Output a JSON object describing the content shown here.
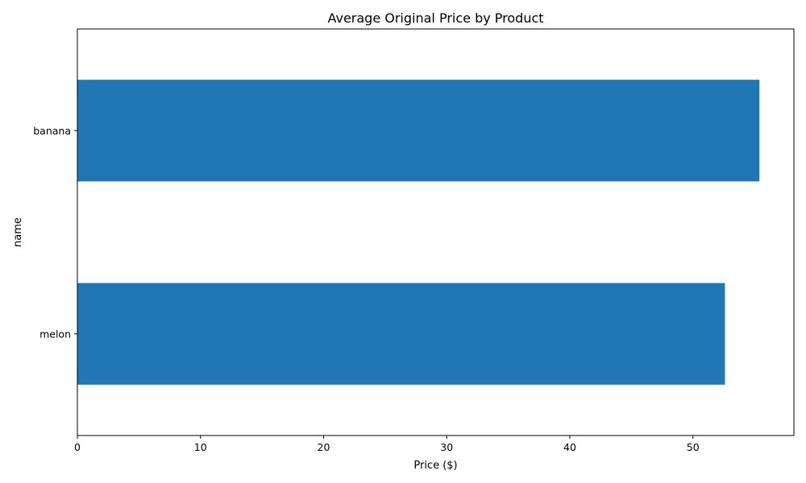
{
  "chart_data": {
    "type": "bar",
    "orientation": "horizontal",
    "title": "Average Original Price by Product",
    "xlabel": "Price ($)",
    "ylabel": "name",
    "categories": [
      "melon",
      "banana"
    ],
    "values": [
      52.6,
      55.4
    ],
    "xlim": [
      0,
      58.2
    ],
    "xticks": [
      0,
      10,
      20,
      30,
      40,
      50
    ],
    "grid": false,
    "bar_color": "#1f77b4"
  }
}
